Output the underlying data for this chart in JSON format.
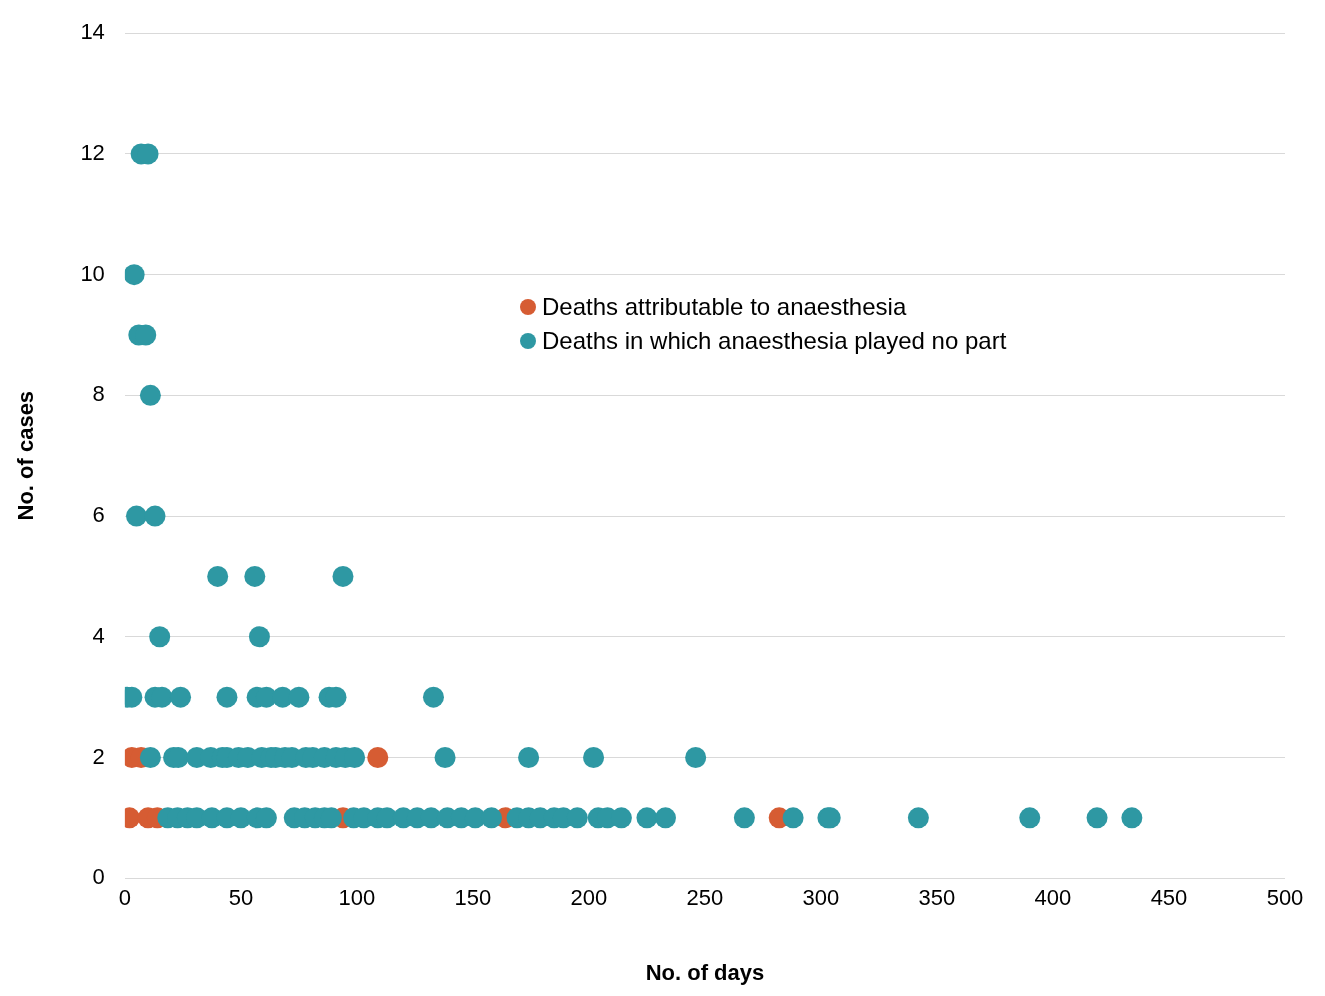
{
  "chart_data": {
    "type": "scatter",
    "xlabel": "No. of days",
    "ylabel": "No. of cases",
    "xlim": [
      0,
      500
    ],
    "xticks": [
      0,
      50,
      100,
      150,
      200,
      250,
      300,
      350,
      400,
      450,
      500
    ],
    "ylim": [
      0,
      14
    ],
    "yticks": [
      0,
      2,
      4,
      6,
      8,
      10,
      12,
      14
    ],
    "grid": "y",
    "legend": "top",
    "marker": "circle",
    "series": [
      {
        "name": "Deaths attributable to anaesthesia",
        "color": "#d65c33",
        "x": [
          3,
          7,
          109,
          2,
          10,
          14,
          94,
          164,
          282
        ],
        "values": [
          2,
          2,
          2,
          1,
          1,
          1,
          1,
          1,
          1
        ]
      },
      {
        "name": "Deaths in which anaesthesia played no part",
        "color": "#2e98a3",
        "x": [
          7,
          10,
          4,
          6,
          9,
          11,
          5,
          13,
          40,
          56,
          94,
          15,
          58,
          1,
          3,
          13,
          16,
          24,
          44,
          57,
          61,
          68,
          75,
          88,
          91,
          133,
          11,
          21,
          23,
          31,
          37,
          42,
          44,
          49,
          53,
          59,
          63,
          65,
          69,
          72,
          78,
          81,
          86,
          91,
          95,
          99,
          138,
          174,
          202,
          246,
          18.5,
          22.7,
          27,
          31,
          37.5,
          44,
          50,
          57,
          61,
          73,
          77.5,
          82,
          86,
          89,
          98.6,
          103,
          109,
          113,
          120,
          126,
          132,
          139,
          145,
          151,
          158,
          169,
          174,
          179,
          185,
          189,
          195,
          204,
          208,
          214,
          225,
          233,
          267,
          288,
          303,
          304,
          342,
          390,
          419,
          434
        ],
        "values": [
          12,
          12,
          10,
          9,
          9,
          8,
          6,
          6,
          5,
          5,
          5,
          4,
          4,
          3,
          3,
          3,
          3,
          3,
          3,
          3,
          3,
          3,
          3,
          3,
          3,
          3,
          2,
          2,
          2,
          2,
          2,
          2,
          2,
          2,
          2,
          2,
          2,
          2,
          2,
          2,
          2,
          2,
          2,
          2,
          2,
          2,
          2,
          2,
          2,
          2,
          1,
          1,
          1,
          1,
          1,
          1,
          1,
          1,
          1,
          1,
          1,
          1,
          1,
          1,
          1,
          1,
          1,
          1,
          1,
          1,
          1,
          1,
          1,
          1,
          1,
          1,
          1,
          1,
          1,
          1,
          1,
          1,
          1,
          1,
          1,
          1,
          1,
          1,
          1,
          1,
          1,
          1,
          1,
          1
        ]
      }
    ]
  }
}
